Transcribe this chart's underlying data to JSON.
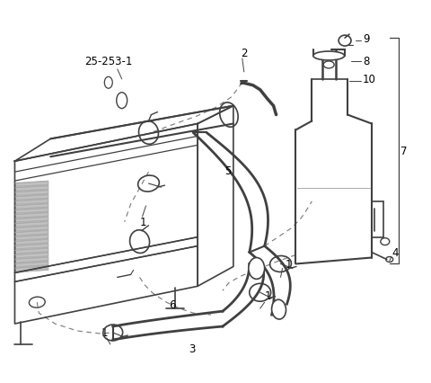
{
  "bg_color": "#ffffff",
  "line_color": "#404040",
  "gray": "#888888",
  "light_gray": "#bbbbbb",
  "figsize": [
    4.8,
    4.27
  ],
  "dpi": 100
}
